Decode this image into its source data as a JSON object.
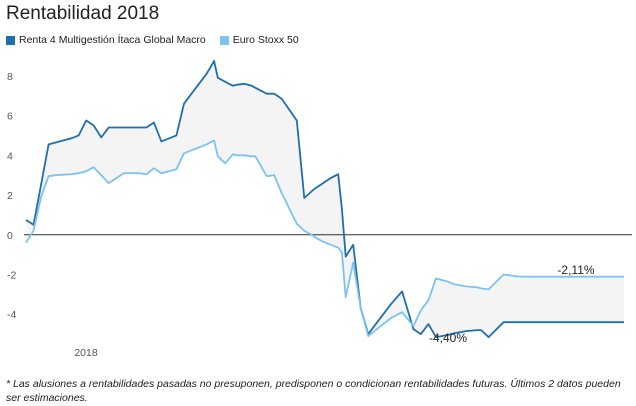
{
  "chart_data": {
    "type": "line",
    "title": "Rentabilidad 2018",
    "xlabel": "",
    "ylabel": "",
    "x_tick_labels": [
      "2018"
    ],
    "y_ticks": [
      8,
      6,
      4,
      2,
      0,
      -2,
      -4
    ],
    "ylim": [
      -5.6,
      9.1
    ],
    "grid": false,
    "legend_position": "top-left",
    "shaded_area_between_series": true,
    "x": [
      1,
      3,
      5,
      7,
      9,
      13,
      15,
      17,
      19,
      21,
      23,
      27,
      29,
      31,
      33,
      35,
      37,
      41,
      43,
      45,
      47,
      49,
      51,
      52,
      54,
      56,
      57,
      59,
      61,
      62,
      65,
      67,
      69,
      73,
      75,
      77,
      78,
      80,
      82,
      84,
      85,
      86,
      88,
      90,
      92,
      94,
      96,
      98,
      101,
      104,
      106,
      108,
      110,
      113,
      115,
      118,
      121,
      122,
      124,
      128,
      130,
      132,
      135,
      137,
      139,
      141,
      143,
      146,
      149,
      152,
      155,
      158,
      160
    ],
    "series": [
      {
        "name": "Renta 4 Multigestión Ítaca Global Macro",
        "color": "#1f6fae",
        "values": [
          0.75,
          0.5,
          2.5,
          4.55,
          4.65,
          4.85,
          5.0,
          5.75,
          5.5,
          4.9,
          5.4,
          5.4,
          5.4,
          5.4,
          5.4,
          5.65,
          4.7,
          5.0,
          6.6,
          7.1,
          7.6,
          8.1,
          8.75,
          7.9,
          7.7,
          7.5,
          7.55,
          7.6,
          7.5,
          7.4,
          7.1,
          7.1,
          6.85,
          5.75,
          1.85,
          2.2,
          2.35,
          2.6,
          2.85,
          3.05,
          1.3,
          -1.1,
          -0.5,
          -3.7,
          -5.0,
          -4.5,
          -4.0,
          -3.5,
          -2.85,
          -4.75,
          -5.0,
          -4.5,
          -5.15,
          -5.05,
          -4.95,
          -4.85,
          -4.8,
          -4.8,
          -5.15,
          -4.4,
          -4.4,
          -4.4,
          -4.4,
          -4.4,
          -4.4,
          -4.4,
          -4.4,
          -4.4,
          -4.4,
          -4.4,
          -4.4,
          -4.4,
          -4.4
        ],
        "final_label": "-4,40%"
      },
      {
        "name": "Euro Stoxx 50",
        "color": "#7cc3ef",
        "values": [
          -0.4,
          0.2,
          1.9,
          2.95,
          3.0,
          3.05,
          3.1,
          3.2,
          3.4,
          3.0,
          2.6,
          3.1,
          3.1,
          3.1,
          3.05,
          3.35,
          3.1,
          3.3,
          4.1,
          4.25,
          4.4,
          4.55,
          4.75,
          3.95,
          3.6,
          4.05,
          4.0,
          4.0,
          3.95,
          3.95,
          2.95,
          3.0,
          2.1,
          0.55,
          0.2,
          0.0,
          -0.15,
          -0.35,
          -0.5,
          -0.65,
          -0.9,
          -3.15,
          -1.4,
          -3.7,
          -5.1,
          -4.8,
          -4.5,
          -4.2,
          -3.9,
          -4.6,
          -3.8,
          -3.3,
          -2.2,
          -2.35,
          -2.5,
          -2.6,
          -2.65,
          -2.7,
          -2.75,
          -2.0,
          -2.05,
          -2.1,
          -2.11,
          -2.11,
          -2.11,
          -2.11,
          -2.11,
          -2.11,
          -2.11,
          -2.11,
          -2.11,
          -2.11,
          -2.11
        ],
        "final_label": "-2,11%"
      }
    ]
  },
  "footnote": "* Las alusiones a rentabilidades pasadas no presuponen, predisponen o condicionan rentabilidades futuras. Últimos 2 datos pueden ser estimaciones."
}
